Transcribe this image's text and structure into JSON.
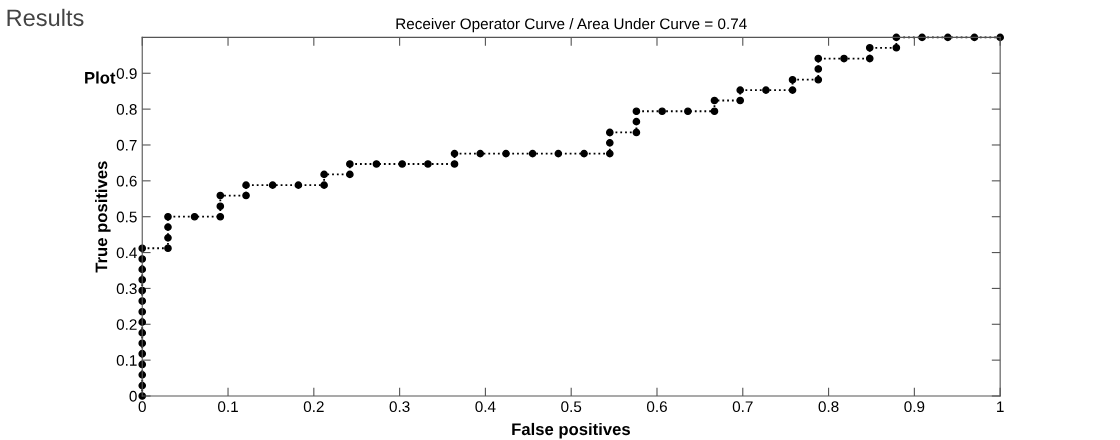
{
  "chart_data": {
    "type": "line",
    "title": "Receiver Operator Curve / Area Under Curve = 0.74",
    "xlabel": "False positives",
    "ylabel": "True positives",
    "annotations": [
      "Results",
      "Plot"
    ],
    "series": [
      {
        "color": "#000000",
        "x": [
          0,
          0,
          0,
          0,
          0,
          0,
          0,
          0,
          0,
          0,
          0,
          0,
          0,
          0,
          0,
          0.03,
          0.03,
          0.03,
          0.03,
          0.061,
          0.091,
          0.091,
          0.091,
          0.121,
          0.121,
          0.152,
          0.182,
          0.212,
          0.212,
          0.242,
          0.242,
          0.273,
          0.303,
          0.333,
          0.364,
          0.364,
          0.394,
          0.424,
          0.455,
          0.485,
          0.515,
          0.545,
          0.545,
          0.545,
          0.576,
          0.576,
          0.576,
          0.606,
          0.636,
          0.667,
          0.667,
          0.697,
          0.697,
          0.727,
          0.758,
          0.758,
          0.788,
          0.788,
          0.788,
          0.818,
          0.848,
          0.848,
          0.879,
          0.879,
          0.909,
          0.939,
          0.97,
          1
        ],
        "values": [
          0,
          0.029,
          0.059,
          0.088,
          0.118,
          0.147,
          0.176,
          0.206,
          0.235,
          0.265,
          0.294,
          0.324,
          0.353,
          0.382,
          0.412,
          0.412,
          0.441,
          0.471,
          0.5,
          0.5,
          0.5,
          0.529,
          0.559,
          0.559,
          0.588,
          0.588,
          0.588,
          0.588,
          0.618,
          0.618,
          0.647,
          0.647,
          0.647,
          0.647,
          0.647,
          0.676,
          0.676,
          0.676,
          0.676,
          0.676,
          0.676,
          0.676,
          0.706,
          0.735,
          0.735,
          0.765,
          0.794,
          0.794,
          0.794,
          0.794,
          0.824,
          0.824,
          0.853,
          0.853,
          0.853,
          0.882,
          0.882,
          0.912,
          0.941,
          0.941,
          0.941,
          0.971,
          0.971,
          1,
          1,
          1,
          1,
          1
        ]
      }
    ],
    "xlim": [
      0,
      1
    ],
    "xticks": [
      0,
      0.1,
      0.2,
      0.3,
      0.4,
      0.5,
      0.6,
      0.7,
      0.8,
      0.9,
      1
    ],
    "ylim": [
      0,
      1
    ],
    "yticks": [
      0,
      0.1,
      0.2,
      0.3,
      0.4,
      0.5,
      0.6,
      0.7,
      0.8,
      0.9
    ],
    "marker": "circle",
    "line_style": "dotted",
    "grid": false,
    "legend": false
  }
}
